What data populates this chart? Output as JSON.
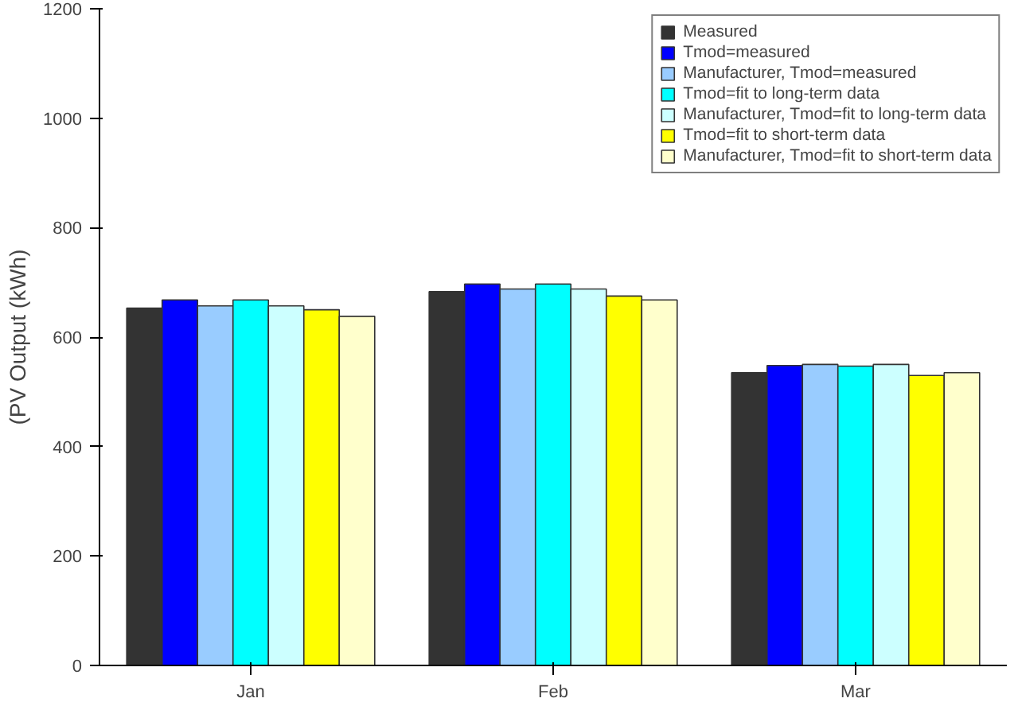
{
  "chart_data": {
    "type": "bar",
    "ylabel": "(PV Output (kWh)",
    "categories": [
      "Jan",
      "Feb",
      "Mar"
    ],
    "ylim": [
      0,
      1200
    ],
    "yticks": [
      0,
      200,
      400,
      600,
      800,
      1000,
      1200
    ],
    "grid": false,
    "legend": "top right",
    "series": [
      {
        "name": "Measured",
        "color": "#333333",
        "values": [
          653,
          683,
          535
        ]
      },
      {
        "name": "Tmod=measured",
        "color": "#0000ff",
        "values": [
          668,
          697,
          548
        ]
      },
      {
        "name": "Manufacturer, Tmod=measured",
        "color": "#99ccff",
        "values": [
          657,
          688,
          550
        ]
      },
      {
        "name": "Tmod=fit to long-term data",
        "color": "#00ffff",
        "values": [
          668,
          697,
          547
        ]
      },
      {
        "name": "Manufacturer, Tmod=fit to long-term data",
        "color": "#ccffff",
        "values": [
          657,
          688,
          550
        ]
      },
      {
        "name": "Tmod=fit to short-term data",
        "color": "#ffff00",
        "values": [
          650,
          675,
          530
        ]
      },
      {
        "name": "Manufacturer, Tmod=fit to short-term data",
        "color": "#ffffcc",
        "values": [
          638,
          668,
          535
        ]
      }
    ]
  }
}
